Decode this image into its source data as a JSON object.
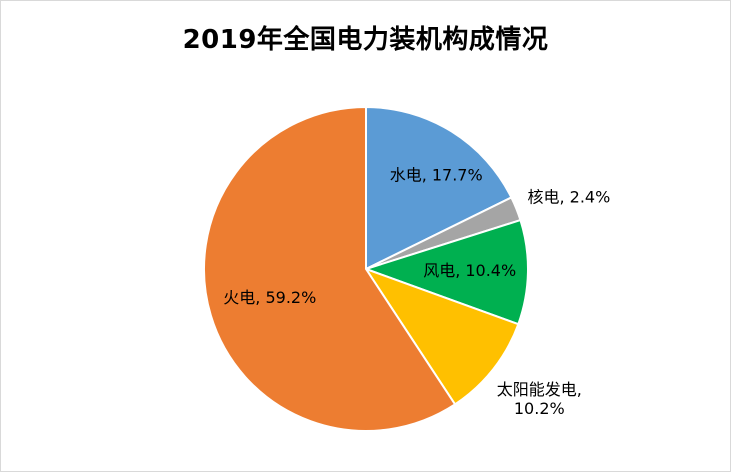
{
  "frame": {
    "border_color": "#D9D9D9",
    "background": "#FFFFFF"
  },
  "chart_data": {
    "type": "pie",
    "title": "2019年全国电力装机构成情况",
    "categories": [
      "水电",
      "核电",
      "风电",
      "太阳能发电",
      "火电"
    ],
    "values": [
      17.7,
      2.4,
      10.4,
      10.2,
      59.2
    ],
    "unit": "%",
    "colors": [
      "#5B9BD5",
      "#A5A5A5",
      "#00B050",
      "#FFC000",
      "#ED7D31"
    ],
    "labels": [
      "水电, 17.7%",
      "核电, 2.4%",
      "风电, 10.4%",
      "太阳能发电, 10.2%",
      "火电, 59.2%"
    ],
    "label_lines": [
      [
        "水电, 17.7%"
      ],
      [
        "核电, 2.4%"
      ],
      [
        "风电, 10.4%"
      ],
      [
        "太阳能发电,",
        "10.2%"
      ],
      [
        "火电, 59.2%"
      ]
    ],
    "start_angle_deg": 0,
    "direction": "clockwise",
    "legend_position": "none",
    "label_color": "#000000",
    "title_color": "#000000"
  }
}
